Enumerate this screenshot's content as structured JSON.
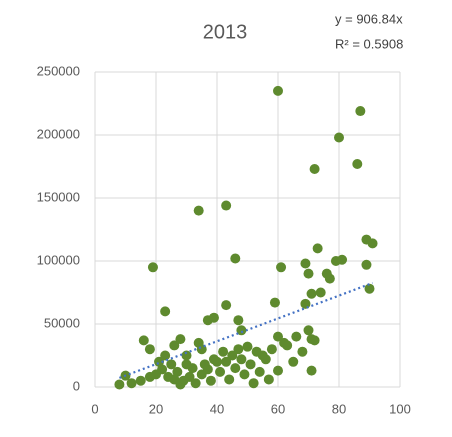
{
  "chart_data": {
    "type": "scatter",
    "title": "2013",
    "trendline": {
      "slope": 906.84,
      "label": "y = 906.84x",
      "r2_label": "R² = 0.5908",
      "color": "#4472c4"
    },
    "color": "#5e8a2e",
    "x": [
      60,
      87,
      80,
      86,
      72,
      43,
      34,
      89,
      91,
      73,
      46,
      81,
      79,
      19,
      61,
      69,
      89,
      70,
      76,
      77,
      74,
      71,
      69,
      59,
      90,
      43,
      39,
      37,
      47,
      23,
      48,
      70,
      60,
      71,
      62,
      68,
      72,
      58,
      50,
      53,
      56,
      65,
      60,
      71,
      57,
      52,
      16,
      18,
      26,
      28,
      34,
      35,
      30,
      42,
      45,
      48,
      40,
      36,
      32,
      25,
      22,
      20,
      18,
      15,
      12,
      8,
      10,
      24,
      27,
      29,
      31,
      33,
      35,
      38,
      41,
      44,
      46,
      49,
      51,
      54,
      28,
      26,
      37,
      43,
      47,
      55,
      63,
      66,
      23,
      21,
      30,
      39
    ],
    "values": [
      235000,
      219000,
      198000,
      177000,
      173000,
      144000,
      140000,
      117000,
      114000,
      110000,
      102000,
      101000,
      100000,
      95000,
      95000,
      98000,
      97000,
      90000,
      90000,
      86000,
      75000,
      74000,
      66000,
      67000,
      78000,
      65000,
      55000,
      53000,
      53000,
      60000,
      45000,
      45000,
      40000,
      38000,
      35000,
      28000,
      37000,
      30000,
      32000,
      28000,
      22000,
      20000,
      13000,
      13000,
      6000,
      3000,
      37000,
      30000,
      33000,
      38000,
      35000,
      30000,
      25000,
      28000,
      25000,
      22000,
      20000,
      18000,
      15000,
      18000,
      14000,
      10000,
      8000,
      5000,
      3000,
      2000,
      9000,
      8000,
      12000,
      5000,
      8000,
      3000,
      10000,
      5000,
      12000,
      6000,
      15000,
      10000,
      18000,
      12000,
      2000,
      6000,
      14000,
      20000,
      30000,
      25000,
      33000,
      40000,
      25000,
      20000,
      18000,
      22000
    ],
    "xlim": [
      0,
      100
    ],
    "xticks": [
      0,
      20,
      40,
      60,
      80,
      100
    ],
    "ylim": [
      0,
      250000
    ],
    "yticks": [
      0,
      50000,
      100000,
      150000,
      200000,
      250000
    ],
    "grid": true
  }
}
